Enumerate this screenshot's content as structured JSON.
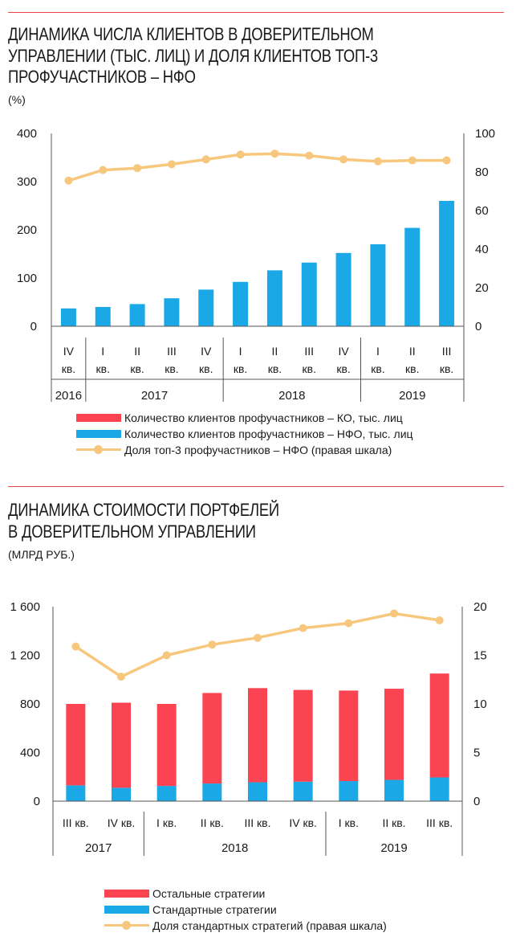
{
  "colors": {
    "rule": "#e8474c",
    "ko": "#fb4451",
    "nfo": "#1aa9e6",
    "share": "#f8c77e",
    "axis": "#555555"
  },
  "chart_data": [
    {
      "type": "bar",
      "title": "ДИНАМИКА ЧИСЛА КЛИЕНТОВ В ДОВЕРИТЕЛЬНОМ УПРАВЛЕНИИ (ТЫС. ЛИЦ) И ДОЛЯ КЛИЕНТОВ ТОП-3 ПРОФУЧАСТНИКОВ – НФО",
      "title_lines": [
        "ДИНАМИКА ЧИСЛА КЛИЕНТОВ В ДОВЕРИТЕЛЬНОМ",
        "УПРАВЛЕНИИ (ТЫС. ЛИЦ) И ДОЛЯ КЛИЕНТОВ ТОП-3",
        "ПРОФУЧАСТНИКОВ – НФО"
      ],
      "unit": "(%)",
      "categories": [
        "IV кв. 2016",
        "I кв. 2017",
        "II кв. 2017",
        "III кв. 2017",
        "IV кв. 2017",
        "I кв. 2018",
        "II кв. 2018",
        "III кв. 2018",
        "IV кв. 2018",
        "I кв. 2019",
        "II кв. 2019",
        "III кв. 2019"
      ],
      "category_labels": [
        [
          "IV",
          "кв."
        ],
        [
          "I",
          "кв."
        ],
        [
          "II",
          "кв."
        ],
        [
          "III",
          "кв."
        ],
        [
          "IV",
          "кв."
        ],
        [
          "I",
          "кв."
        ],
        [
          "II",
          "кв."
        ],
        [
          "III",
          "кв."
        ],
        [
          "IV",
          "кв."
        ],
        [
          "I",
          "кв."
        ],
        [
          "II",
          "кв."
        ],
        [
          "III",
          "кв."
        ]
      ],
      "year_groups": [
        {
          "label": "2016",
          "count": 1
        },
        {
          "label": "2017",
          "count": 4
        },
        {
          "label": "2018",
          "count": 4
        },
        {
          "label": "2019",
          "count": 3
        }
      ],
      "series": [
        {
          "name": "Количество клиентов профучастников – КО, тыс. лиц",
          "type": "bar",
          "axis": "left",
          "values": [
            0,
            0,
            0,
            0,
            0,
            0,
            0,
            0,
            0,
            0,
            0,
            0
          ]
        },
        {
          "name": "Количество клиентов профучастников – НФО, тыс. лиц",
          "type": "bar",
          "axis": "left",
          "values": [
            37,
            40,
            46,
            58,
            76,
            92,
            116,
            132,
            152,
            170,
            204,
            260
          ]
        },
        {
          "name": "Доля топ-3 профучастников – НФО (правая шкала)",
          "type": "line",
          "axis": "right",
          "values": [
            75.5,
            81,
            82,
            84,
            86.5,
            89,
            89.5,
            88.5,
            86.5,
            85.5,
            86,
            86
          ]
        }
      ],
      "ylim": [
        0,
        400
      ],
      "yticks": [
        "0",
        "100",
        "200",
        "300",
        "400"
      ],
      "y2lim": [
        0,
        100
      ],
      "y2ticks": [
        "0",
        "20",
        "40",
        "60",
        "80",
        "100"
      ],
      "grid": false,
      "legend_position": "bottom"
    },
    {
      "type": "bar",
      "stacked": true,
      "title": "ДИНАМИКА СТОИМОСТИ ПОРТФЕЛЕЙ В ДОВЕРИТЕЛЬНОМ УПРАВЛЕНИИ",
      "title_lines": [
        "ДИНАМИКА СТОИМОСТИ ПОРТФЕЛЕЙ",
        "В ДОВЕРИТЕЛЬНОМ УПРАВЛЕНИИ"
      ],
      "unit": "(МЛРД РУБ.)",
      "categories": [
        "III кв. 2017",
        "IV кв. 2017",
        "I кв. 2018",
        "II кв. 2018",
        "III кв. 2018",
        "IV кв. 2018",
        "I кв. 2019",
        "II кв. 2019",
        "III кв. 2019"
      ],
      "category_labels": [
        [
          "III кв."
        ],
        [
          "IV кв."
        ],
        [
          "I кв."
        ],
        [
          "II кв."
        ],
        [
          "III кв."
        ],
        [
          "IV кв."
        ],
        [
          "I кв."
        ],
        [
          "II кв."
        ],
        [
          "III кв."
        ]
      ],
      "year_groups": [
        {
          "label": "2017",
          "count": 2
        },
        {
          "label": "2018",
          "count": 4
        },
        {
          "label": "2019",
          "count": 3
        }
      ],
      "series": [
        {
          "name": "Стандартные стратегии",
          "type": "bar",
          "axis": "left",
          "values": [
            130,
            110,
            125,
            145,
            155,
            160,
            165,
            175,
            195
          ]
        },
        {
          "name": "Остальные стратегии",
          "type": "bar",
          "axis": "left",
          "values": [
            670,
            700,
            675,
            745,
            775,
            755,
            745,
            750,
            855
          ]
        },
        {
          "name": "Доля стандартных стратегий (правая шкала)",
          "type": "line",
          "axis": "right",
          "values": [
            15.9,
            12.8,
            15,
            16.1,
            16.8,
            17.8,
            18.3,
            19.3,
            18.6
          ]
        }
      ],
      "ylim": [
        0,
        1600
      ],
      "yticks": [
        "0",
        "400",
        "800",
        "1 200",
        "1 600"
      ],
      "y2lim": [
        0,
        20
      ],
      "y2ticks": [
        "0",
        "5",
        "10",
        "15",
        "20"
      ],
      "grid": false,
      "legend_position": "bottom"
    }
  ],
  "legends": [
    [
      {
        "label": "Количество клиентов профучастников – КО, тыс. лиц",
        "kind": "bar",
        "color": "#fb4451"
      },
      {
        "label": "Количество клиентов профучастников – НФО, тыс. лиц",
        "kind": "bar",
        "color": "#1aa9e6"
      },
      {
        "label": "Доля топ-3 профучастников – НФО (правая шкала)",
        "kind": "line",
        "color": "#f8c77e"
      }
    ],
    [
      {
        "label": "Остальные стратегии",
        "kind": "bar",
        "color": "#fb4451"
      },
      {
        "label": "Стандартные стратегии",
        "kind": "bar",
        "color": "#1aa9e6"
      },
      {
        "label": "Доля стандартных стратегий (правая шкала)",
        "kind": "line",
        "color": "#f8c77e"
      }
    ]
  ]
}
